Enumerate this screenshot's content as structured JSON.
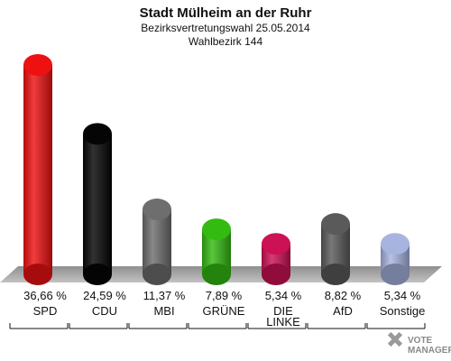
{
  "header": {
    "title": "Stadt Mülheim an der Ruhr",
    "subtitle": "Bezirksvertretungswahl 25.05.2014",
    "district": "Wahlbezirk 144"
  },
  "chart_data": {
    "type": "bar",
    "title": "Stadt Mülheim an der Ruhr",
    "subtitle": "Bezirksvertretungswahl 25.05.2014",
    "categories": [
      "SPD",
      "CDU",
      "MBI",
      "GRÜNE",
      "DIE LINKE",
      "AfD",
      "Sonstige"
    ],
    "category_lines": [
      [
        "SPD"
      ],
      [
        "CDU"
      ],
      [
        "MBI"
      ],
      [
        "GRÜNE"
      ],
      [
        "DIE",
        "LINKE"
      ],
      [
        "AfD"
      ],
      [
        "Sonstige"
      ]
    ],
    "values": [
      36.66,
      24.59,
      11.37,
      7.89,
      5.34,
      8.82,
      5.34
    ],
    "value_labels": [
      "36,66 %",
      "24,59 %",
      "11,37 %",
      "7,89 %",
      "5,34 %",
      "8,82 %",
      "5,34 %"
    ],
    "colors": [
      "#ee1111",
      "#050505",
      "#6e6e6e",
      "#33bb11",
      "#cc1155",
      "#5a5a5a",
      "#a8b4e0"
    ],
    "ylim": [
      0,
      36.66
    ],
    "grid": false,
    "legend": "none"
  },
  "logo": {
    "line1": "VOTE",
    "line2": "MANAGER"
  }
}
